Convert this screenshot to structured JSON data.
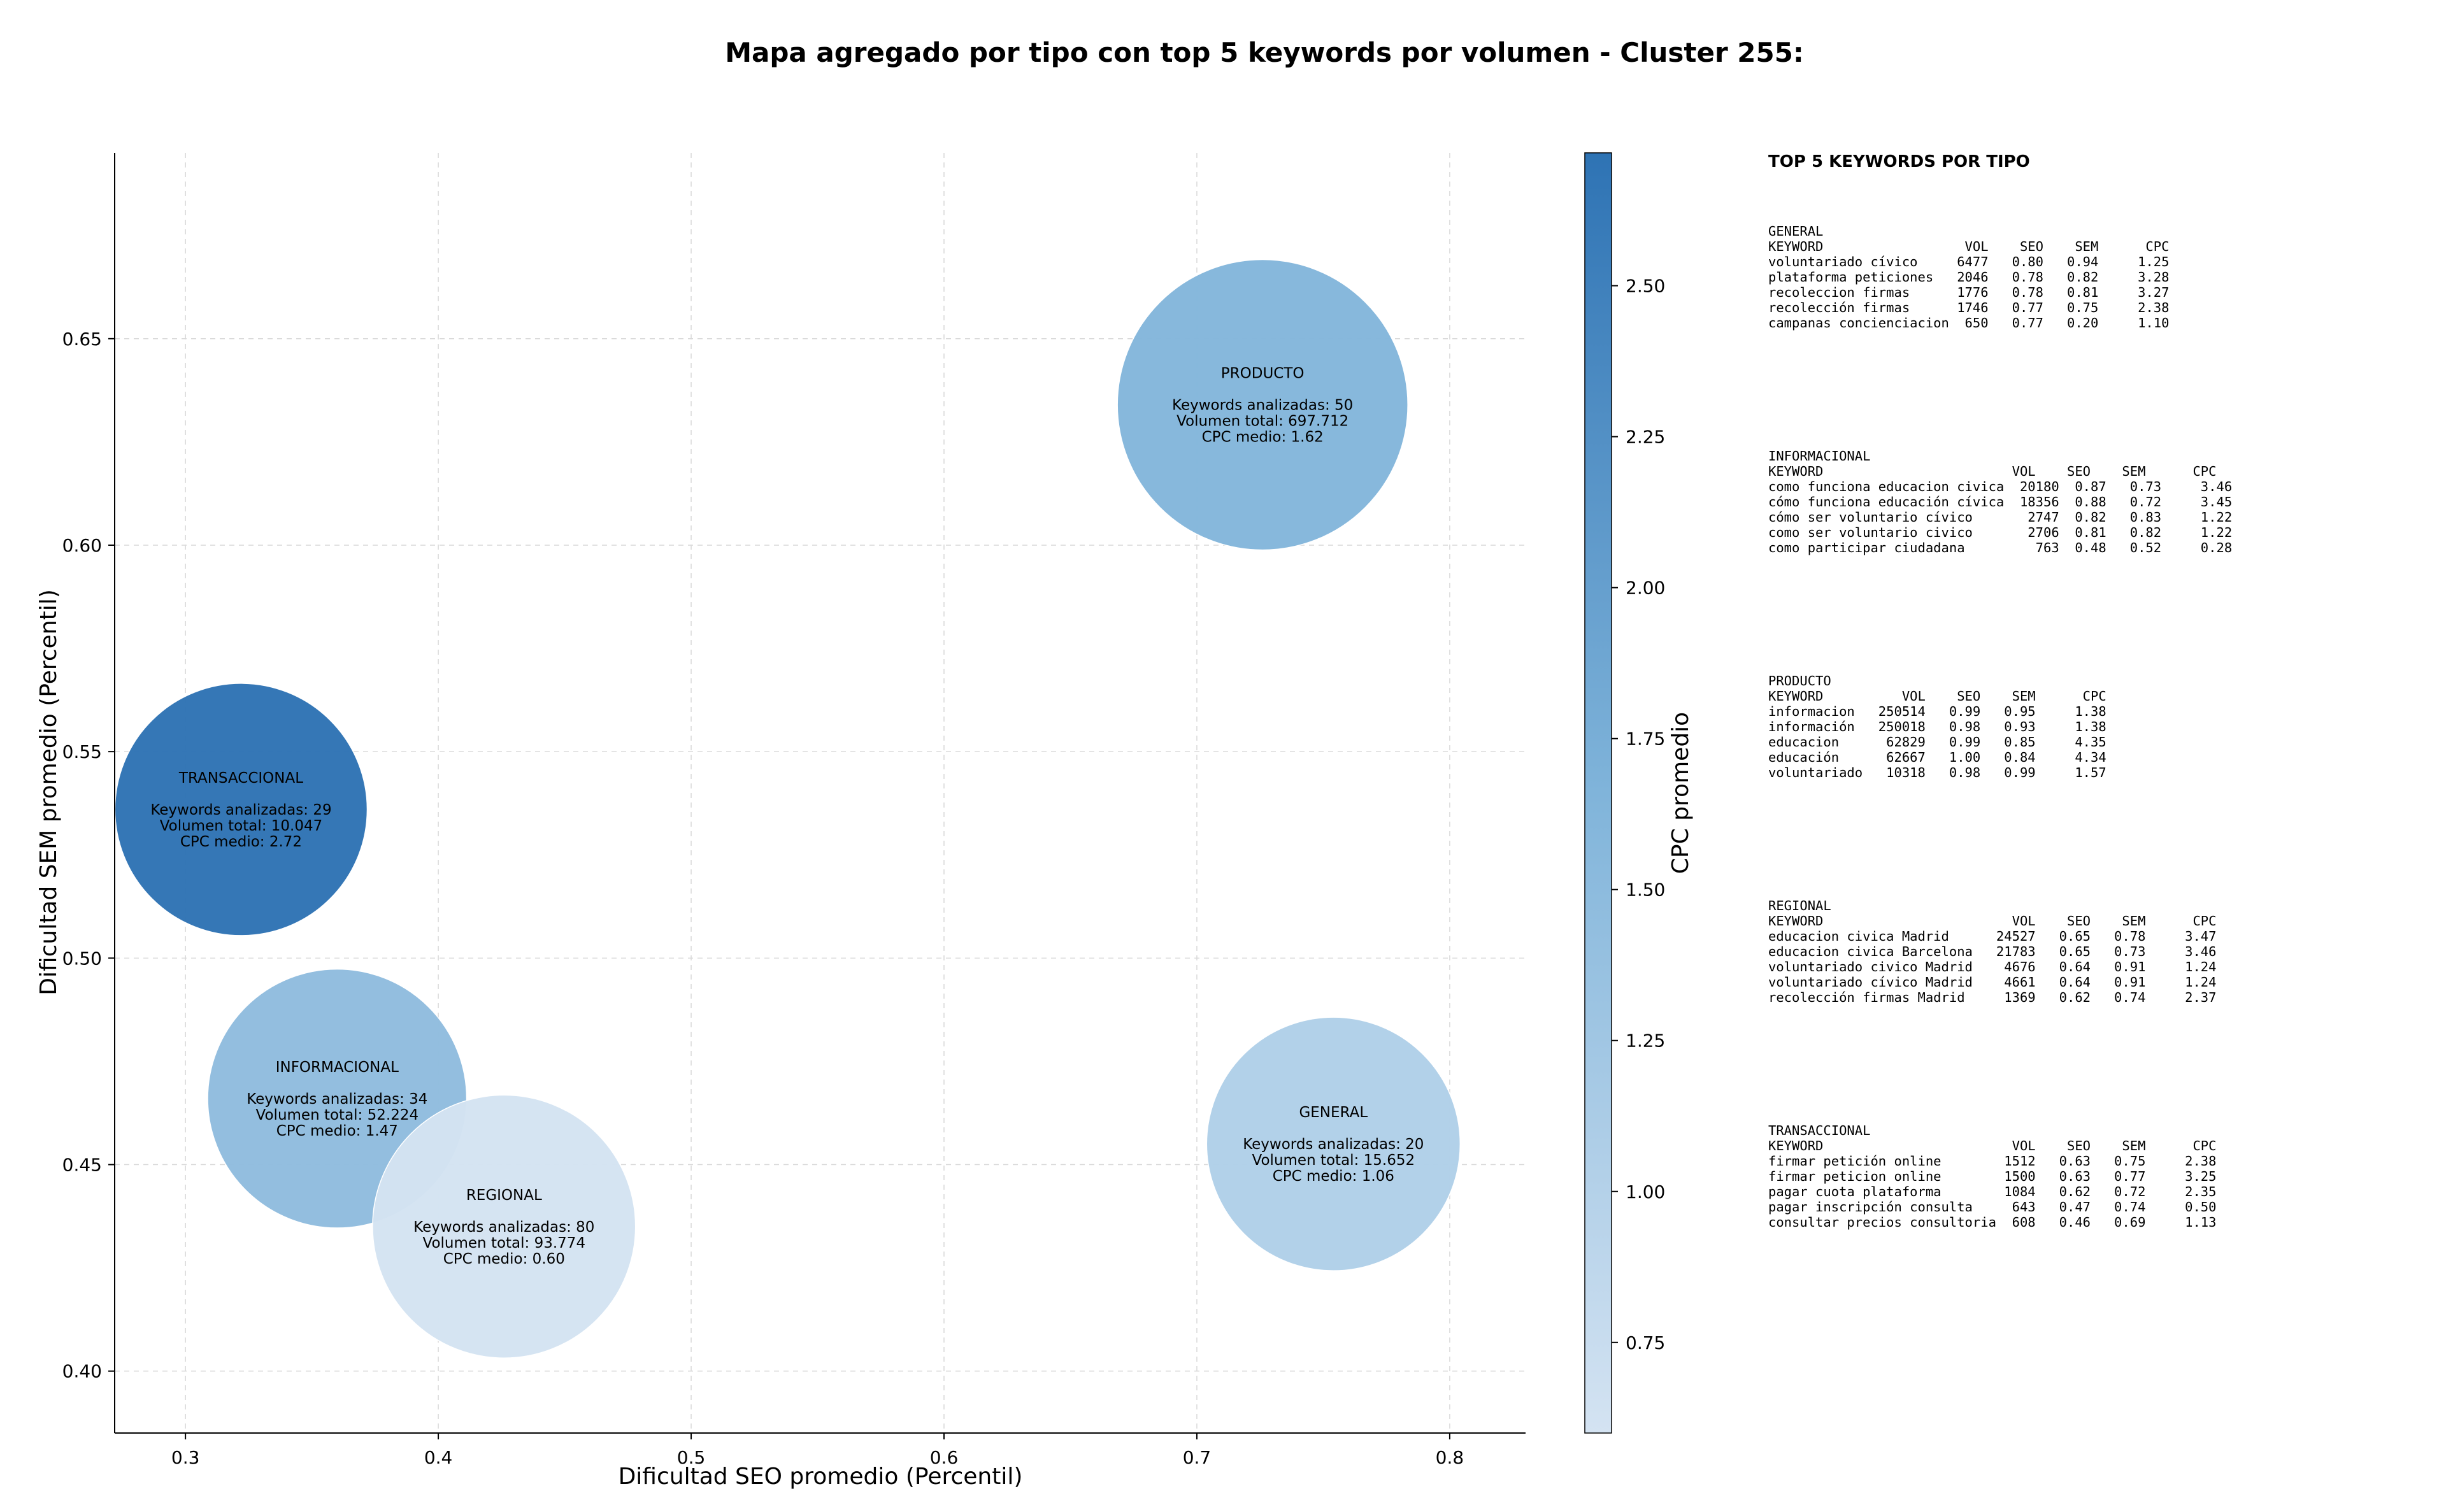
{
  "chart_data": {
    "type": "bubble",
    "title": "Mapa agregado por tipo con top 5 keywords por volumen - Cluster 255:",
    "xlabel": "Dificultad SEO promedio (Percentil)",
    "ylabel": "Dificultad SEM promedio (Percentil)",
    "xlim": [
      0.272,
      0.83
    ],
    "ylim": [
      0.385,
      0.695
    ],
    "xticks": [
      0.3,
      0.4,
      0.5,
      0.6,
      0.7,
      0.8
    ],
    "xtick_labels": [
      "0.3",
      "0.4",
      "0.5",
      "0.6",
      "0.7",
      "0.8"
    ],
    "yticks": [
      0.4,
      0.45,
      0.5,
      0.55,
      0.6,
      0.65
    ],
    "ytick_labels": [
      "0.40",
      "0.45",
      "0.50",
      "0.55",
      "0.60",
      "0.65"
    ],
    "grid": true,
    "colorbar": {
      "label": "CPC promedio",
      "range": [
        0.6,
        2.72
      ],
      "ticks": [
        0.75,
        1.0,
        1.25,
        1.5,
        1.75,
        2.0,
        2.25,
        2.5
      ],
      "tick_labels": [
        "0.75",
        "1.00",
        "1.25",
        "1.50",
        "1.75",
        "2.00",
        "2.25",
        "2.50"
      ],
      "color_low": "#d4e3f2",
      "color_high": "#2e73b4"
    },
    "series": [
      {
        "name": "PRODUCTO",
        "x": 0.726,
        "y": 0.634,
        "volume": 697712,
        "cpc": 1.62,
        "lines": [
          "PRODUCTO",
          "",
          "Keywords analizadas: 50",
          "Volumen total: 697.712",
          "CPC medio: 1.62"
        ]
      },
      {
        "name": "TRANSACCIONAL",
        "x": 0.322,
        "y": 0.536,
        "volume": 10047,
        "cpc": 2.72,
        "lines": [
          "TRANSACCIONAL",
          "",
          "Keywords analizadas: 29",
          "Volumen total: 10.047",
          "CPC medio: 2.72"
        ]
      },
      {
        "name": "INFORMACIONAL",
        "x": 0.36,
        "y": 0.466,
        "volume": 52224,
        "cpc": 1.47,
        "lines": [
          "INFORMACIONAL",
          "",
          "Keywords analizadas: 34",
          "Volumen total: 52.224",
          "CPC medio: 1.47"
        ]
      },
      {
        "name": "GENERAL",
        "x": 0.754,
        "y": 0.455,
        "volume": 15652,
        "cpc": 1.06,
        "lines": [
          "GENERAL",
          "",
          "Keywords analizadas: 20",
          "Volumen total: 15.652",
          "CPC medio: 1.06"
        ]
      },
      {
        "name": "REGIONAL",
        "x": 0.426,
        "y": 0.435,
        "volume": 93774,
        "cpc": 0.6,
        "lines": [
          "REGIONAL",
          "",
          "Keywords analizadas: 80",
          "Volumen total: 93.774",
          "CPC medio: 0.60"
        ]
      }
    ],
    "side_panel": {
      "heading": "TOP 5 KEYWORDS POR TIPO",
      "blocks": [
        {
          "name": "GENERAL",
          "lines": [
            "GENERAL",
            "KEYWORD                  VOL    SEO    SEM      CPC",
            "voluntariado cívico     6477   0.80   0.94     1.25",
            "plataforma peticiones   2046   0.78   0.82     3.28",
            "recoleccion firmas      1776   0.78   0.81     3.27",
            "recolección firmas      1746   0.77   0.75     2.38",
            "campanas concienciacion  650   0.77   0.20     1.10"
          ]
        },
        {
          "name": "INFORMACIONAL",
          "lines": [
            "INFORMACIONAL",
            "KEYWORD                        VOL    SEO    SEM      CPC",
            "como funciona educacion civica  20180  0.87   0.73     3.46",
            "cómo funciona educación cívica  18356  0.88   0.72     3.45",
            "cómo ser voluntario cívico       2747  0.82   0.83     1.22",
            "como ser voluntario civico       2706  0.81   0.82     1.22",
            "como participar ciudadana         763  0.48   0.52     0.28"
          ]
        },
        {
          "name": "PRODUCTO",
          "lines": [
            "PRODUCTO",
            "KEYWORD          VOL    SEO    SEM      CPC",
            "informacion   250514   0.99   0.95     1.38",
            "información   250018   0.98   0.93     1.38",
            "educacion      62829   0.99   0.85     4.35",
            "educación      62667   1.00   0.84     4.34",
            "voluntariado   10318   0.98   0.99     1.57"
          ]
        },
        {
          "name": "REGIONAL",
          "lines": [
            "REGIONAL",
            "KEYWORD                        VOL    SEO    SEM      CPC",
            "educacion civica Madrid      24527   0.65   0.78     3.47",
            "educacion civica Barcelona   21783   0.65   0.73     3.46",
            "voluntariado civico Madrid    4676   0.64   0.91     1.24",
            "voluntariado cívico Madrid    4661   0.64   0.91     1.24",
            "recolección firmas Madrid     1369   0.62   0.74     2.37"
          ]
        },
        {
          "name": "TRANSACCIONAL",
          "lines": [
            "TRANSACCIONAL",
            "KEYWORD                        VOL    SEO    SEM      CPC",
            "firmar petición online        1512   0.63   0.75     2.38",
            "firmar peticion online        1500   0.63   0.77     3.25",
            "pagar cuota plataforma        1084   0.62   0.72     2.35",
            "pagar inscripción consulta     643   0.47   0.74     0.50",
            "consultar precios consultoria  608   0.46   0.69     1.13"
          ]
        }
      ]
    }
  }
}
